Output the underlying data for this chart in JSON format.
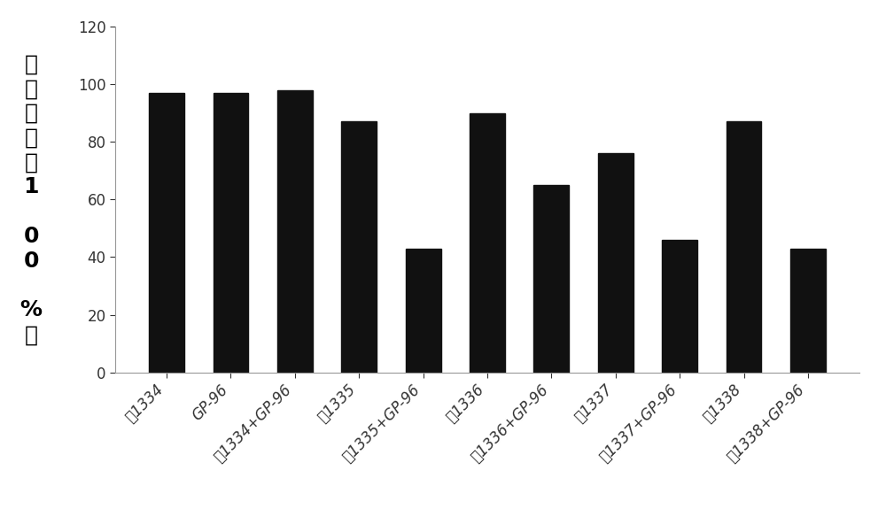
{
  "categories": [
    "肽1334",
    "GP-96",
    "肽1334+GP-96",
    "肽1335",
    "肽1335+GP-96",
    "肽1336",
    "肽1336+GP-96",
    "肽1337",
    "肽1337+GP-96",
    "肽1338",
    "肽1338+GP-96"
  ],
  "values": [
    97,
    97,
    98,
    87,
    43,
    90,
    65,
    76,
    46,
    87,
    43
  ],
  "bar_color": "#111111",
  "ylabel_chars": [
    "细",
    "胞",
    "活",
    "性",
    "（",
    "1",
    "",
    "0",
    "0",
    "",
    "%",
    "）"
  ],
  "ylim": [
    0,
    120
  ],
  "yticks": [
    0,
    20,
    40,
    60,
    80,
    100,
    120
  ],
  "background_color": "#ffffff",
  "tick_label_fontsize": 12,
  "ylabel_fontsize": 18,
  "bar_width": 0.55,
  "figsize": [
    10.0,
    6.01
  ],
  "dpi": 100
}
